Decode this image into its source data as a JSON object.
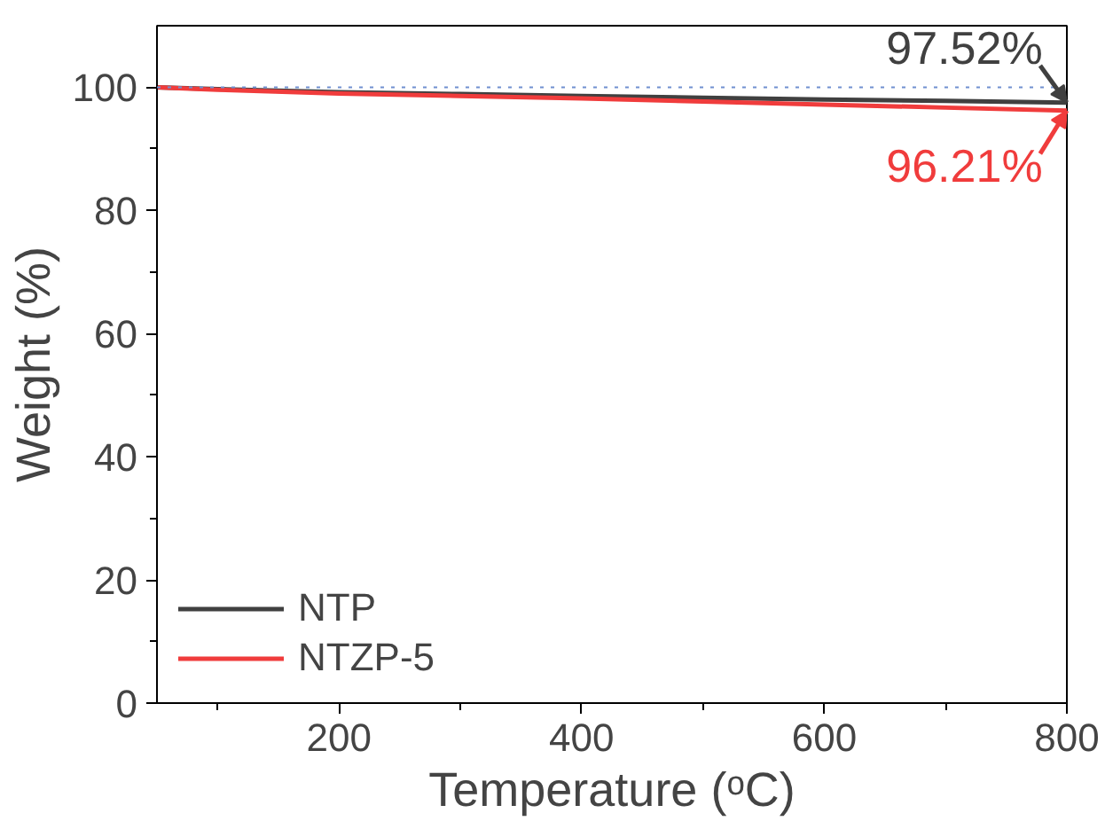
{
  "chart_data": {
    "type": "line",
    "xlabel": "Temperature (ᵒC)",
    "ylabel": "Weight (%)",
    "x": [
      50,
      100,
      200,
      300,
      400,
      500,
      600,
      700,
      800
    ],
    "series": [
      {
        "name": "NTP",
        "color": "#404040",
        "values": [
          100,
          99.7,
          99.2,
          98.9,
          98.6,
          98.3,
          98.0,
          97.8,
          97.52
        ]
      },
      {
        "name": "NTZP-5",
        "color": "#f03c3c",
        "values": [
          100,
          99.6,
          99.0,
          98.6,
          98.2,
          97.7,
          97.2,
          96.7,
          96.21
        ]
      }
    ],
    "xlim": [
      50,
      800
    ],
    "xticks": [
      {
        "value": 100,
        "label": null
      },
      200,
      {
        "value": 300,
        "label": null
      },
      400,
      {
        "value": 500,
        "label": null
      },
      600,
      {
        "value": 700,
        "label": null
      },
      800
    ],
    "ylim": [
      0,
      110
    ],
    "yticks": [
      0,
      {
        "value": 10,
        "label": null
      },
      20,
      {
        "value": 30,
        "label": null
      },
      40,
      {
        "value": 50,
        "label": null
      },
      60,
      {
        "value": 70,
        "label": null
      },
      80,
      {
        "value": 90,
        "label": null
      },
      100
    ],
    "ref_lines": [
      {
        "axis": "y",
        "value": 100,
        "color": "#7090d0",
        "line_style": "dotted"
      }
    ],
    "annotations": [
      {
        "text": "97.52%",
        "x": 800,
        "y": 97.52
      },
      {
        "text": "96.21%",
        "x": 800,
        "y": 96.21
      }
    ],
    "grid": false,
    "legend": "bottom left",
    "line_style": "solid",
    "marker": "none"
  }
}
